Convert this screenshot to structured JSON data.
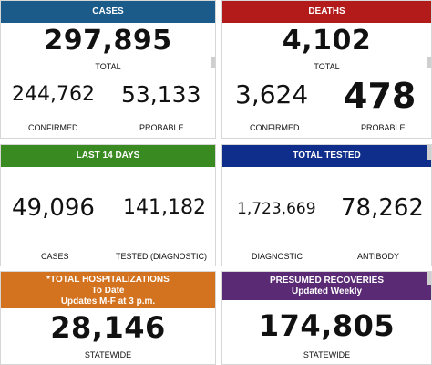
{
  "colors": {
    "cases_header": "#1b5b8a",
    "deaths_header": "#b31b1b",
    "last14_header": "#3a8a22",
    "tested_header": "#0f2d8a",
    "hosp_header": "#d3721f",
    "recoveries_header": "#5a2a74"
  },
  "cases": {
    "header": "CASES",
    "total_value": "297,895",
    "total_label": "TOTAL",
    "confirmed_value": "244,762",
    "confirmed_label": "CONFIRMED",
    "probable_value": "53,133",
    "probable_label": "PROBABLE"
  },
  "deaths": {
    "header": "DEATHS",
    "total_value": "4,102",
    "total_label": "TOTAL",
    "confirmed_value": "3,624",
    "confirmed_label": "CONFIRMED",
    "probable_value": "478",
    "probable_label": "PROBABLE"
  },
  "last14": {
    "header": "LAST 14 DAYS",
    "cases_value": "49,096",
    "cases_label": "CASES",
    "tested_value": "141,182",
    "tested_label": "TESTED (DIAGNOSTIC)"
  },
  "tested": {
    "header": "TOTAL TESTED",
    "diagnostic_value": "1,723,669",
    "diagnostic_label": "DIAGNOSTIC",
    "antibody_value": "78,262",
    "antibody_label": "ANTIBODY"
  },
  "hospitalizations": {
    "header_line1": "*TOTAL HOSPITALIZATIONS",
    "header_line2": "To Date",
    "header_line3": "Updates M-F at 3 p.m.",
    "value": "28,146",
    "label": "STATEWIDE"
  },
  "recoveries": {
    "header_line1": "PRESUMED RECOVERIES",
    "header_line2": "Updated Weekly",
    "value": "174,805",
    "label": "STATEWIDE"
  }
}
